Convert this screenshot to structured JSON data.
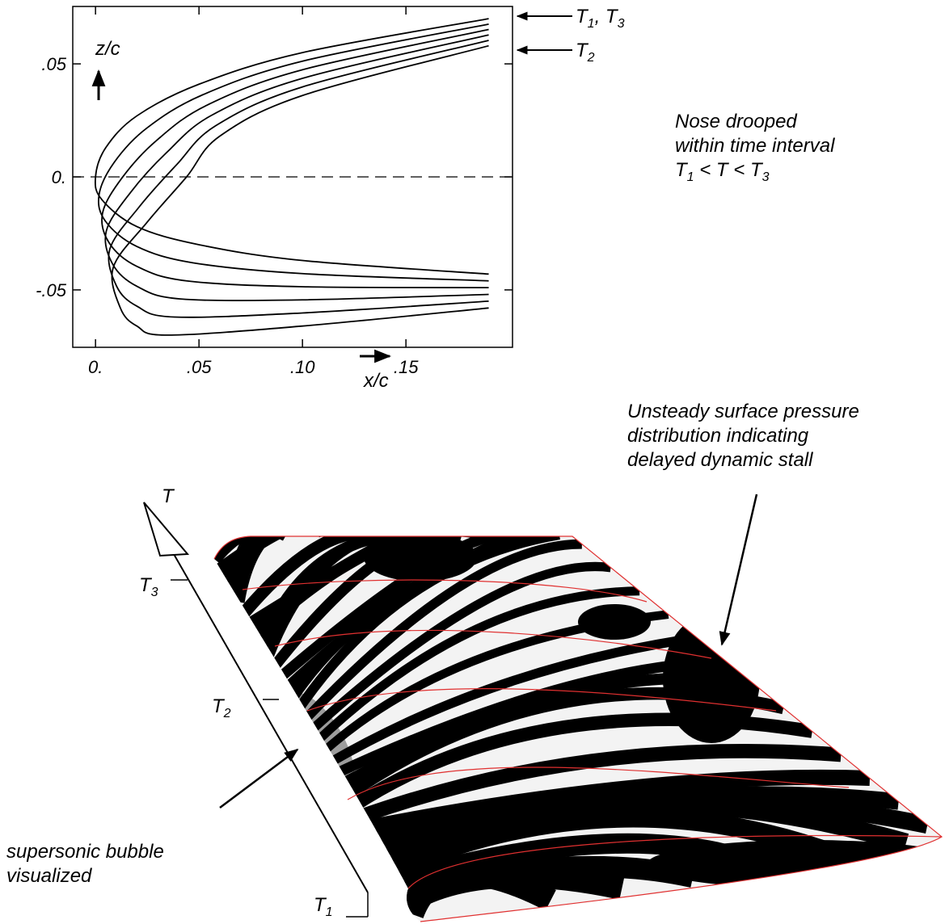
{
  "chart_data": {
    "type": "line",
    "x_label": "x/c",
    "y_label": "z/c",
    "xlim": [
      -0.011,
      0.2015
    ],
    "ylim": [
      -0.0754,
      0.0754
    ],
    "xticks": [
      {
        "value": 0,
        "label": "0."
      },
      {
        "value": 0.05,
        "label": ".05"
      },
      {
        "value": 0.1,
        "label": ".10"
      },
      {
        "value": 0.15,
        "label": ".15"
      }
    ],
    "yticks": [
      {
        "value": -0.05,
        "label": "-.05"
      },
      {
        "value": 0,
        "label": "0."
      },
      {
        "value": 0.05,
        "label": ".05"
      }
    ],
    "grid": false,
    "series": [
      {
        "color": "#000000",
        "x": [
          0.19,
          0.1,
          0.05,
          0.02,
          0.005,
          0,
          0.003,
          0.02,
          0.05,
          0.1,
          0.19
        ],
        "values": [
          0.07,
          0.055,
          0.041,
          0.027,
          0.013,
          0,
          -0.01,
          -0.022,
          -0.03,
          -0.037,
          -0.043
        ]
      },
      {
        "color": "#000000",
        "x": [
          0.19,
          0.1,
          0.052,
          0.0248,
          0.009,
          0.0017,
          0.0048,
          0.02,
          0.047,
          0.1,
          0.19
        ],
        "values": [
          0.0676,
          0.0512,
          0.0364,
          0.0216,
          0.0064,
          -0.008,
          -0.0196,
          -0.0308,
          -0.038,
          -0.0428,
          -0.046
        ]
      },
      {
        "color": "#000000",
        "x": [
          0.19,
          0.1,
          0.054,
          0.0296,
          0.013,
          0.0034,
          0.0066,
          0.02,
          0.044,
          0.1,
          0.19
        ],
        "values": [
          0.0652,
          0.0474,
          0.0318,
          0.0162,
          -0.0002,
          -0.016,
          -0.0292,
          -0.0396,
          -0.046,
          -0.0486,
          -0.049
        ]
      },
      {
        "color": "#000000",
        "x": [
          0.19,
          0.1,
          0.056,
          0.0344,
          0.017,
          0.0052,
          0.0084,
          0.02,
          0.041,
          0.1,
          0.19
        ],
        "values": [
          0.0628,
          0.0436,
          0.0272,
          0.0108,
          -0.0068,
          -0.024,
          -0.0388,
          -0.0484,
          -0.054,
          -0.0544,
          -0.052
        ]
      },
      {
        "color": "#000000",
        "x": [
          0.19,
          0.1,
          0.058,
          0.0392,
          0.021,
          0.0069,
          0.0102,
          0.02,
          0.038,
          0.1,
          0.19
        ],
        "values": [
          0.0604,
          0.0398,
          0.0226,
          0.0054,
          -0.0134,
          -0.032,
          -0.0484,
          -0.0572,
          -0.062,
          -0.0602,
          -0.055
        ]
      },
      {
        "color": "#000000",
        "x": [
          0.19,
          0.1,
          0.06,
          0.044,
          0.025,
          0.0086,
          0.012,
          0.02,
          0.035,
          0.1,
          0.19
        ],
        "values": [
          0.058,
          0.036,
          0.018,
          0,
          -0.02,
          -0.04,
          -0.058,
          -0.066,
          -0.07,
          -0.066,
          -0.058
        ]
      }
    ],
    "annotations": {
      "t1_t3": [
        "T",
        "1",
        ", ",
        "T",
        "3"
      ],
      "t2": [
        "T",
        "2"
      ],
      "note_lines": [
        "Nose drooped",
        "within time interval"
      ],
      "note_condition": [
        "T",
        "1",
        " < T < ",
        "T",
        "3"
      ]
    }
  },
  "figure_b": {
    "time_axis": {
      "label": "T",
      "t3": [
        "T",
        "3"
      ],
      "t2": [
        "T",
        "2"
      ],
      "t1": [
        "T",
        "1"
      ]
    },
    "bubble_caption": [
      "supersonic bubble",
      "visualized"
    ],
    "pressure_caption": [
      "Unsteady surface pressure",
      "distribution indicating",
      "delayed dynamic stall"
    ]
  }
}
